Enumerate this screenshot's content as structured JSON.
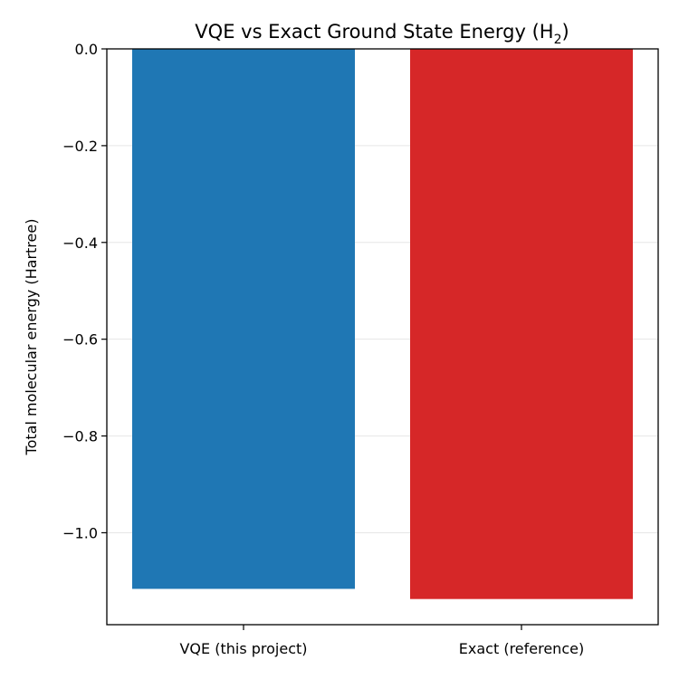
{
  "chart_data": {
    "type": "bar",
    "title_main": "VQE vs Exact Ground State Energy (H",
    "title_sub": "2",
    "title_end": ")",
    "ylabel": "Total molecular energy (Hartree)",
    "xlabel": "",
    "categories": [
      "VQE (this project)",
      "Exact (reference)"
    ],
    "values": [
      -1.116,
      -1.137
    ],
    "colors": [
      "#1f77b4",
      "#d62728"
    ],
    "ylim": [
      -1.19,
      0.0
    ],
    "yticks": [
      0.0,
      -0.2,
      -0.4,
      -0.6,
      -0.8,
      -1.0
    ],
    "ytick_labels": [
      "0.0",
      "−0.2",
      "−0.4",
      "−0.6",
      "−0.8",
      "−1.0"
    ],
    "grid": "horizontal",
    "legend": "none"
  }
}
